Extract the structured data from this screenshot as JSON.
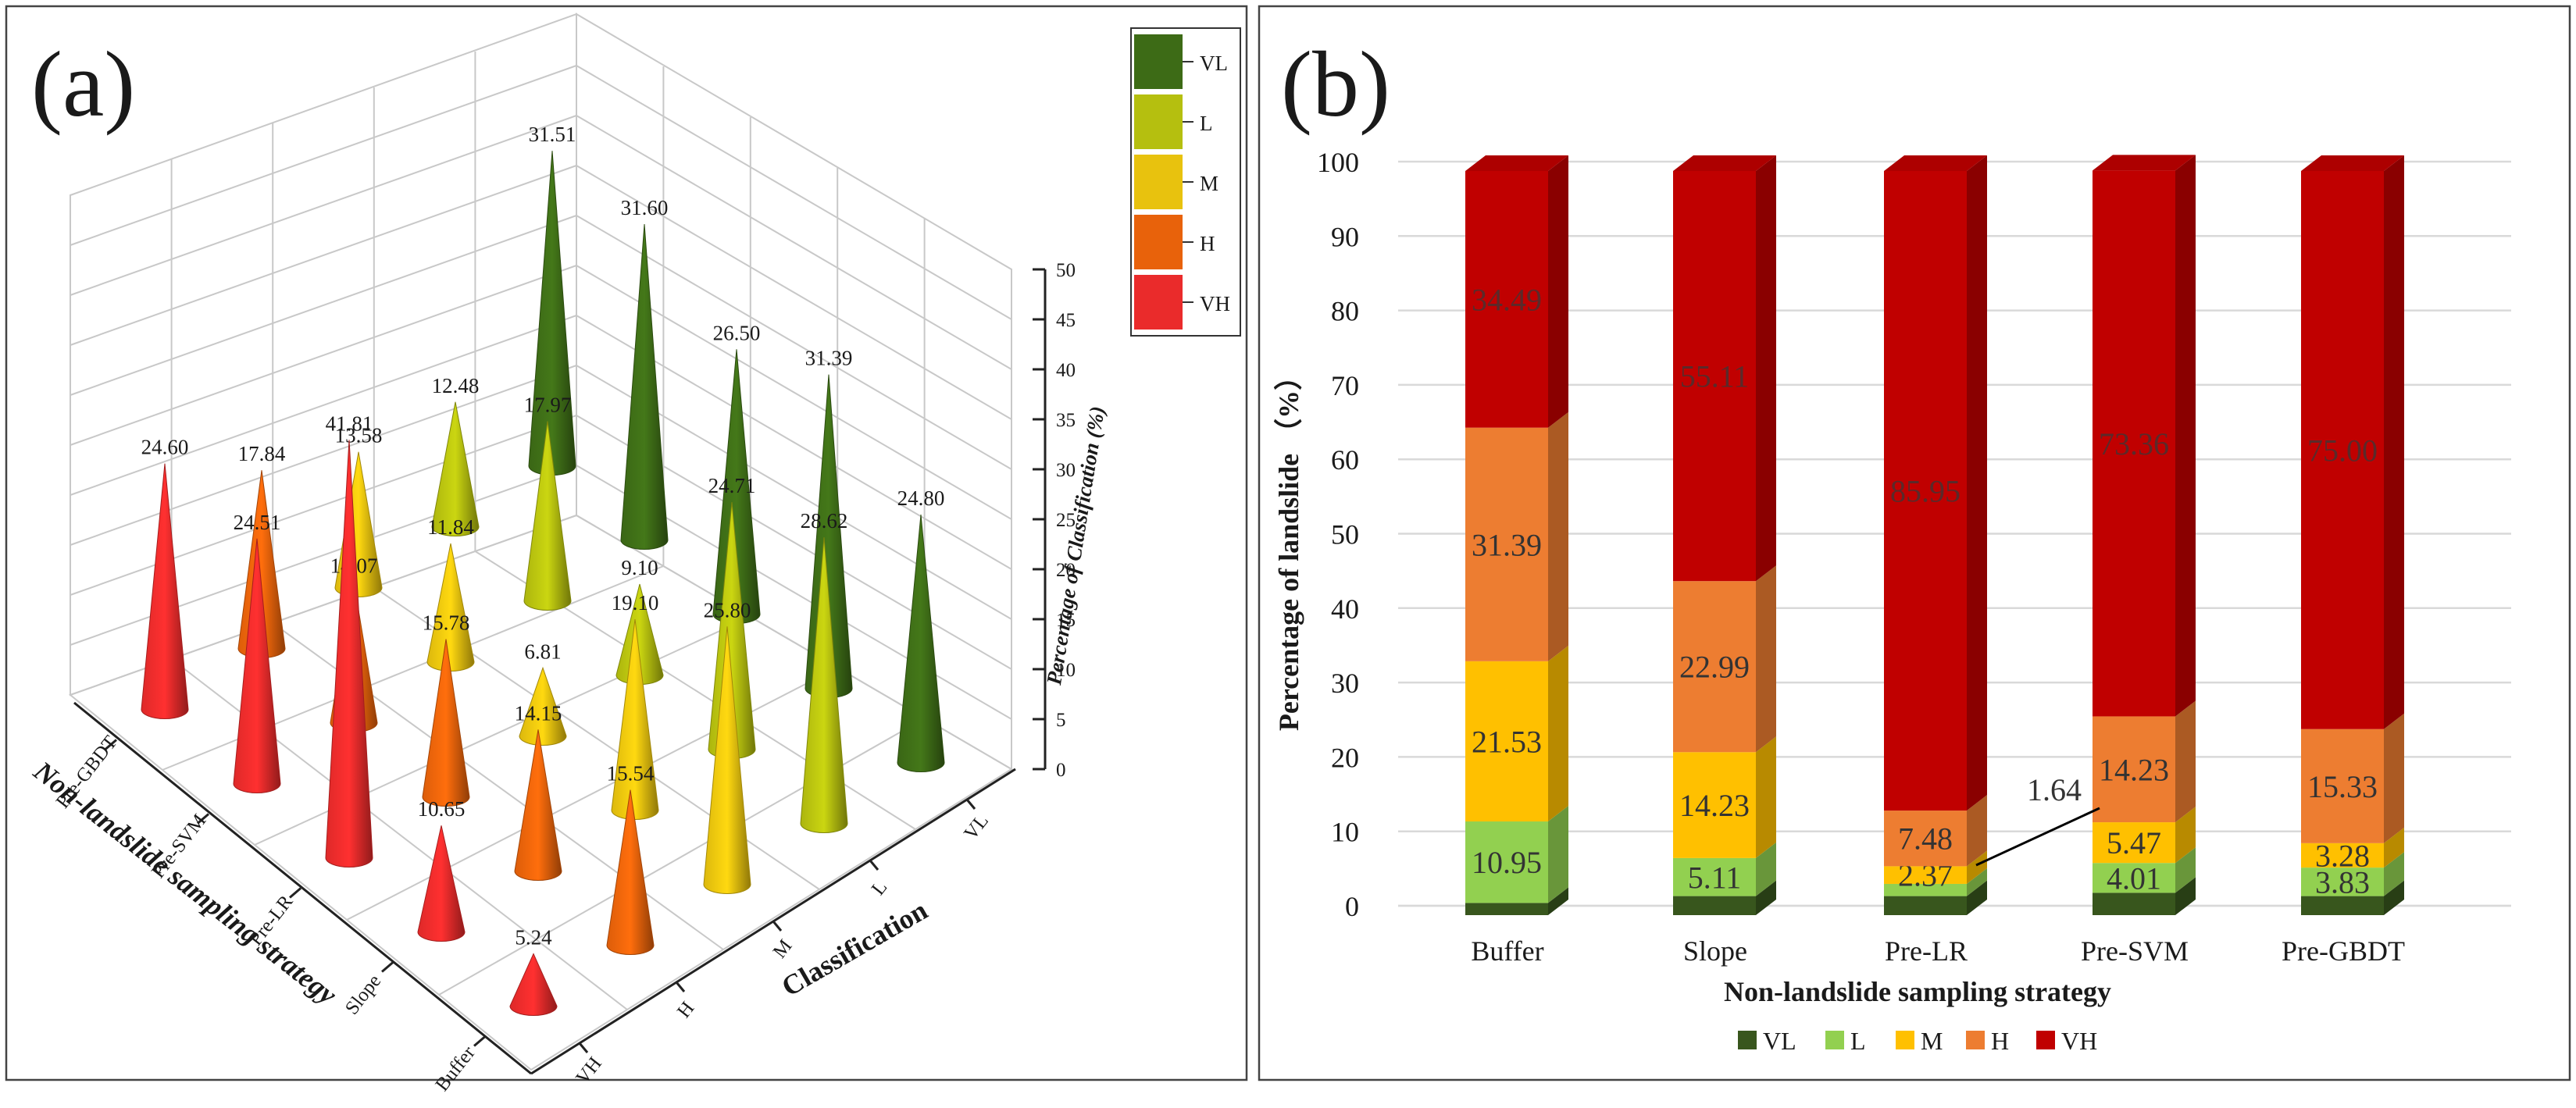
{
  "panel_a": {
    "letter": "(a)",
    "z_axis_label": "Percentage of Classification (%)",
    "z_ticks": [
      "0",
      "5",
      "10",
      "15",
      "20",
      "25",
      "30",
      "35",
      "40",
      "45",
      "50"
    ],
    "x_axis_label": "Classification",
    "y_axis_label": "Non-landslide sampling strategy",
    "legend": [
      {
        "label": "VL",
        "color": "#3d6b16"
      },
      {
        "label": "L",
        "color": "#b5bf0f"
      },
      {
        "label": "M",
        "color": "#e8c20e"
      },
      {
        "label": "H",
        "color": "#e8620b"
      },
      {
        "label": "VH",
        "color": "#ea2b2b"
      }
    ]
  },
  "panel_b": {
    "letter": "(b)",
    "callout_label": "1.64",
    "legend": [
      {
        "label": "VL",
        "color": "#38561d"
      },
      {
        "label": "L",
        "color": "#92d050"
      },
      {
        "label": "M",
        "color": "#ffc000"
      },
      {
        "label": "H",
        "color": "#ed7d31"
      },
      {
        "label": "VH",
        "color": "#c00000"
      }
    ]
  },
  "chart_data": [
    {
      "type": "bar",
      "subtype": "3d-cone",
      "title": "(a)",
      "categories": [
        "VH",
        "H",
        "M",
        "L",
        "VL"
      ],
      "groups": [
        "Buffer",
        "Slope",
        "Pre-LR",
        "Pre-SVM",
        "Pre-GBDT"
      ],
      "series": [
        {
          "name": "Buffer",
          "values": [
            5.24,
            15.54,
            25.8,
            28.62,
            24.8
          ]
        },
        {
          "name": "Slope",
          "values": [
            10.65,
            14.15,
            19.1,
            24.71,
            31.39
          ]
        },
        {
          "name": "Pre-LR",
          "values": [
            41.81,
            15.78,
            6.81,
            9.1,
            26.5
          ]
        },
        {
          "name": "Pre-SVM",
          "values": [
            24.51,
            14.07,
            11.84,
            17.97,
            31.6
          ]
        },
        {
          "name": "Pre-GBDT",
          "values": [
            24.6,
            17.84,
            13.58,
            12.48,
            31.51
          ]
        }
      ],
      "xlabel": "Classification",
      "ylabel": "Non-landslide sampling strategy",
      "zlabel": "Percentage of Classification (%)",
      "zlim": [
        0,
        50
      ]
    },
    {
      "type": "bar",
      "subtype": "stacked-3d",
      "title": "(b)",
      "categories": [
        "Buffer",
        "Slope",
        "Pre-LR",
        "Pre-SVM",
        "Pre-GBDT"
      ],
      "series": [
        {
          "name": "VL",
          "values": [
            1.64,
            2.56,
            2.56,
            3.0,
            2.56
          ],
          "labels": [
            "",
            "",
            "",
            "",
            ""
          ]
        },
        {
          "name": "L",
          "values": [
            10.95,
            5.11,
            1.64,
            4.01,
            3.83
          ],
          "labels": [
            "10.95",
            "5.11",
            "",
            "4.01",
            "3.83"
          ]
        },
        {
          "name": "M",
          "values": [
            21.53,
            14.23,
            2.37,
            5.47,
            3.28
          ],
          "labels": [
            "21.53",
            "14.23",
            "2.37",
            "5.47",
            "3.28"
          ]
        },
        {
          "name": "H",
          "values": [
            31.39,
            22.99,
            7.48,
            14.23,
            15.33
          ],
          "labels": [
            "31.39",
            "22.99",
            "7.48",
            "14.23",
            "15.33"
          ]
        },
        {
          "name": "VH",
          "values": [
            34.49,
            55.11,
            85.95,
            73.36,
            75.0
          ],
          "labels": [
            "34.49",
            "55.11",
            "85.95",
            "73.36",
            "75.00"
          ]
        }
      ],
      "xlabel": "Non-landslide sampling strategy",
      "ylabel": "Percentage of landslide （%）",
      "ylim": [
        0,
        100
      ],
      "yticks": [
        "0",
        "10",
        "20",
        "30",
        "40",
        "50",
        "60",
        "70",
        "80",
        "90",
        "100"
      ]
    }
  ]
}
